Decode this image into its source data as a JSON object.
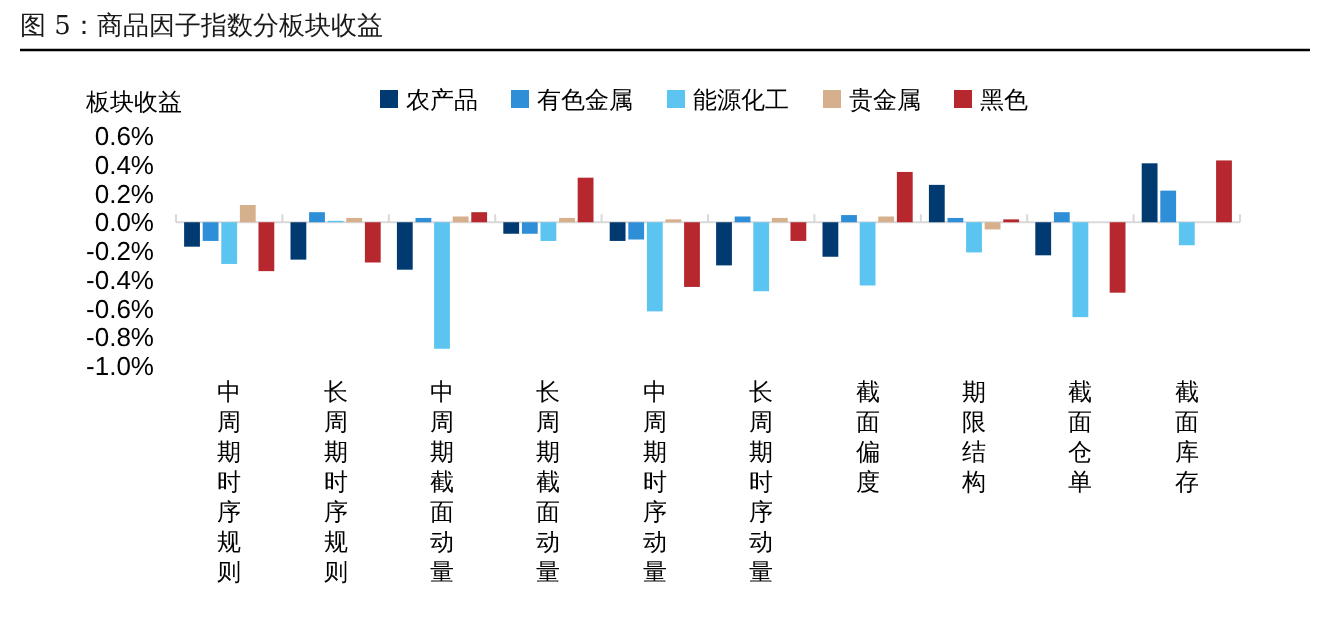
{
  "chart_data": {
    "type": "bar",
    "title": "图 5：商品因子指数分板块收益",
    "ylabel": "板块收益",
    "categories": [
      "中周期时序规则",
      "长周期时序规则",
      "中周期截面动量",
      "长周期截面动量",
      "中周期时序动量",
      "长周期时序动量",
      "截面偏度",
      "期限结构",
      "截面仓单",
      "截面库存"
    ],
    "series": [
      {
        "name": "农产品",
        "color": "#003a70",
        "values": [
          -0.17,
          -0.26,
          -0.33,
          -0.08,
          -0.13,
          -0.3,
          -0.24,
          0.26,
          -0.23,
          0.41
        ]
      },
      {
        "name": "有色金属",
        "color": "#2e8fd8",
        "values": [
          -0.13,
          0.07,
          0.03,
          -0.08,
          -0.12,
          0.04,
          0.05,
          0.03,
          0.07,
          0.22
        ]
      },
      {
        "name": "能源化工",
        "color": "#5bc4f1",
        "values": [
          -0.29,
          0.01,
          -0.88,
          -0.13,
          -0.62,
          -0.48,
          -0.44,
          -0.21,
          -0.66,
          -0.16
        ]
      },
      {
        "name": "贵金属",
        "color": "#d6b08c",
        "values": [
          0.12,
          0.03,
          0.04,
          0.03,
          0.02,
          0.03,
          0.04,
          -0.05,
          0,
          0
        ]
      },
      {
        "name": "黑色",
        "color": "#b7282e",
        "values": [
          -0.34,
          -0.28,
          0.07,
          0.31,
          -0.45,
          -0.13,
          0.35,
          0.02,
          -0.49,
          0.43
        ]
      }
    ],
    "ylim": [
      -1.0,
      0.6
    ],
    "yticks": [
      {
        "value": 0.6,
        "label": "0.6%"
      },
      {
        "value": 0.4,
        "label": "0.4%"
      },
      {
        "value": 0.2,
        "label": "0.2%"
      },
      {
        "value": 0,
        "label": "0.0%"
      },
      {
        "value": -0.2,
        "label": "-0.2%"
      },
      {
        "value": -0.4,
        "label": "-0.4%"
      },
      {
        "value": -0.6,
        "label": "-0.6%"
      },
      {
        "value": -0.8,
        "label": "-0.8%"
      },
      {
        "value": -1.0,
        "label": "-1.0%"
      }
    ],
    "legend": "top"
  }
}
